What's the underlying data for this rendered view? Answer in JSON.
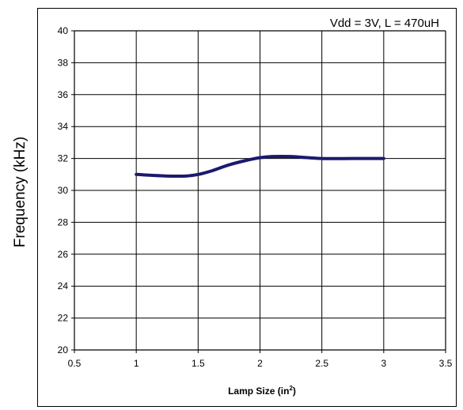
{
  "chart_data": {
    "type": "line",
    "annotation": "Vdd = 3V, L = 470uH",
    "xlabel": "Lamp Size (in",
    "xlabel_sup": "2",
    "xlabel_suffix": ")",
    "ylabel": "Frequency (kHz)",
    "xlim": [
      0.5,
      3.5
    ],
    "ylim": [
      20,
      40
    ],
    "xticks": [
      "0.5",
      "1",
      "1.5",
      "2",
      "2.5",
      "3",
      "3.5"
    ],
    "yticks": [
      "20",
      "22",
      "24",
      "26",
      "28",
      "30",
      "32",
      "34",
      "36",
      "38",
      "40"
    ],
    "grid": true,
    "line_color": "#1a1a6e",
    "x": [
      1.0,
      1.25,
      1.4,
      1.5,
      1.6,
      1.75,
      1.9,
      2.0,
      2.1,
      2.25,
      2.5,
      2.75,
      3.0
    ],
    "y": [
      31.0,
      30.9,
      30.9,
      31.0,
      31.2,
      31.6,
      31.9,
      32.05,
      32.12,
      32.12,
      32.0,
      32.0,
      32.0
    ]
  }
}
